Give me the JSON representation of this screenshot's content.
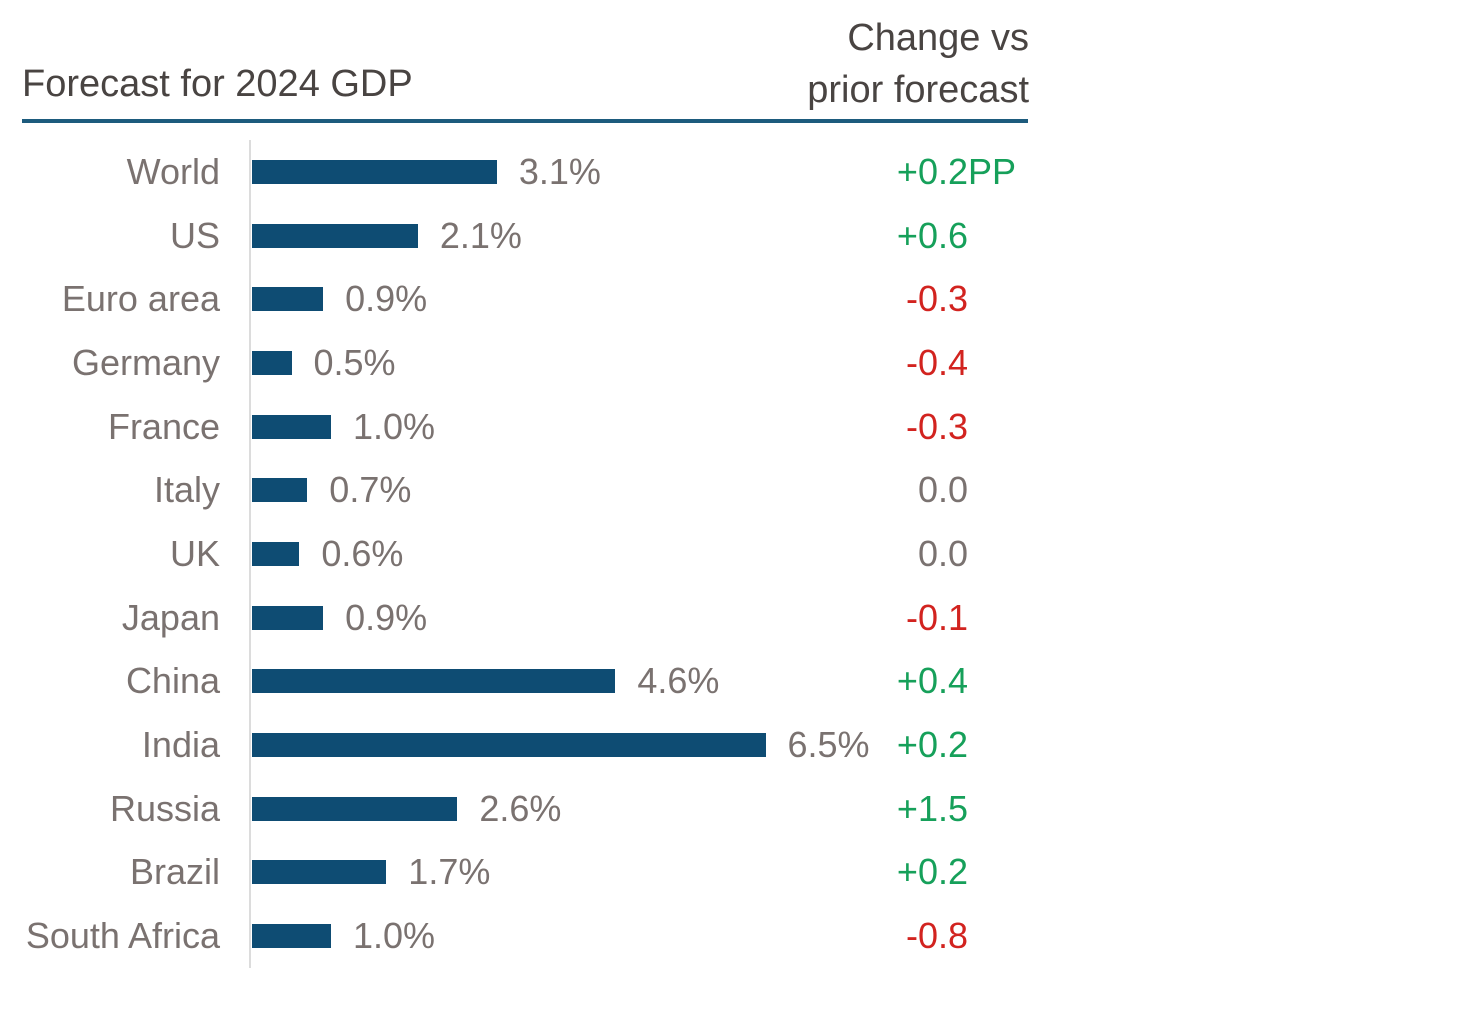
{
  "header": {
    "left_title": "Forecast for 2024 GDP",
    "right_title_line1": "Change vs",
    "right_title_line2": "prior forecast"
  },
  "colors": {
    "bar": "#0e4c73",
    "positive": "#16a05a",
    "negative": "#d2231f",
    "neutral": "#7a7270",
    "category_label": "#7a7270",
    "title_text": "#494442",
    "header_rule": "#1d5b7d",
    "axis_line": "#dcdcdc"
  },
  "chart_data": {
    "type": "bar",
    "orientation": "horizontal",
    "title": "Forecast for 2024 GDP",
    "change_column_header": "Change vs prior forecast",
    "categories": [
      "World",
      "US",
      "Euro area",
      "Germany",
      "France",
      "Italy",
      "UK",
      "Japan",
      "China",
      "India",
      "Russia",
      "Brazil",
      "South Africa"
    ],
    "values": [
      3.1,
      2.1,
      0.9,
      0.5,
      1.0,
      0.7,
      0.6,
      0.9,
      4.6,
      6.5,
      2.6,
      1.7,
      1.0
    ],
    "bar_labels": [
      "3.1%",
      "2.1%",
      "0.9%",
      "0.5%",
      "1.0%",
      "0.7%",
      "0.6%",
      "0.9%",
      "4.6%",
      "6.5%",
      "2.6%",
      "1.7%",
      "1.0%"
    ],
    "changes": [
      "+0.2PP",
      "+0.6",
      "-0.3",
      "-0.4",
      "-0.3",
      "0.0",
      "0.0",
      "-0.1",
      "+0.4",
      "+0.2",
      "+1.5",
      "+0.2",
      "-0.8"
    ],
    "value_unit": "%",
    "change_unit": "PP",
    "xlim": [
      0,
      7
    ],
    "grid": false,
    "legend": "none"
  }
}
